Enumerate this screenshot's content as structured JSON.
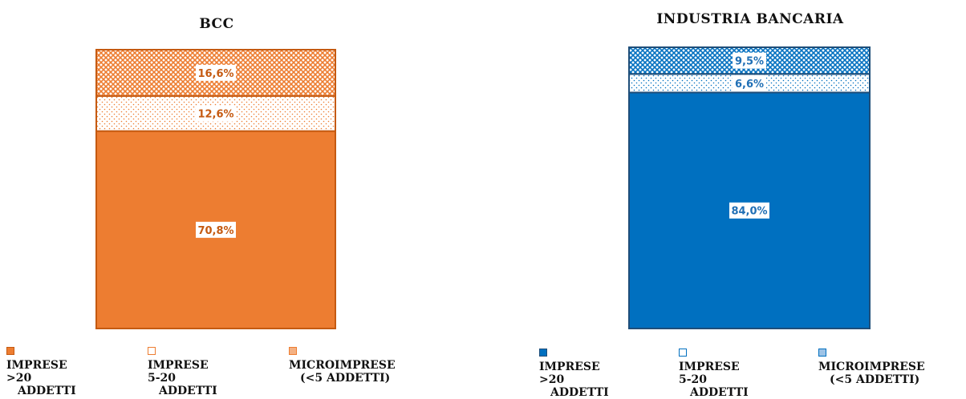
{
  "chart_data": [
    {
      "type": "bar",
      "stacked": true,
      "title": "BCC",
      "categories": [
        "BCC"
      ],
      "series": [
        {
          "name": "IMPRESE >20 ADDETTI",
          "values": [
            70.8
          ],
          "label": "70,8%",
          "pattern": "solid"
        },
        {
          "name": "IMPRESE 5-20 ADDETTI",
          "values": [
            12.6
          ],
          "label": "12,6%",
          "pattern": "dots"
        },
        {
          "name": "MICROIMPRESE (<5 ADDETTI)",
          "values": [
            16.6
          ],
          "label": "16,6%",
          "pattern": "crosshatch"
        }
      ],
      "ylim": [
        0,
        100
      ],
      "grid": false,
      "legend": "bottom",
      "color": "#ED7D31",
      "edge_color": "#C55A11"
    },
    {
      "type": "bar",
      "stacked": true,
      "title": "INDUSTRIA BANCARIA",
      "categories": [
        "INDUSTRIA BANCARIA"
      ],
      "series": [
        {
          "name": "IMPRESE >20 ADDETTI",
          "values": [
            84.0
          ],
          "label": "84,0%",
          "pattern": "solid"
        },
        {
          "name": "IMPRESE 5-20 ADDETTI",
          "values": [
            6.6
          ],
          "label": "6,6%",
          "pattern": "dots"
        },
        {
          "name": "MICROIMPRESE (<5 ADDETTI)",
          "values": [
            9.5
          ],
          "label": "9,5%",
          "pattern": "crosshatch"
        }
      ],
      "ylim": [
        0,
        100
      ],
      "grid": false,
      "legend": "bottom",
      "color": "#0070C0",
      "edge_color": "#1F4E79"
    }
  ],
  "legends": [
    [
      {
        "line1": "IMPRESE >20",
        "line2": "ADDETTI"
      },
      {
        "line1": "IMPRESE 5-20",
        "line2": "ADDETTI"
      },
      {
        "line1": "MICROIMPRESE",
        "line2": "(<5 ADDETTI)"
      }
    ],
    [
      {
        "line1": "IMPRESE >20",
        "line2": "ADDETTI"
      },
      {
        "line1": "IMPRESE 5-20",
        "line2": "ADDETTI"
      },
      {
        "line1": "MICROIMPRESE",
        "line2": "(<5 ADDETTI)"
      }
    ]
  ]
}
